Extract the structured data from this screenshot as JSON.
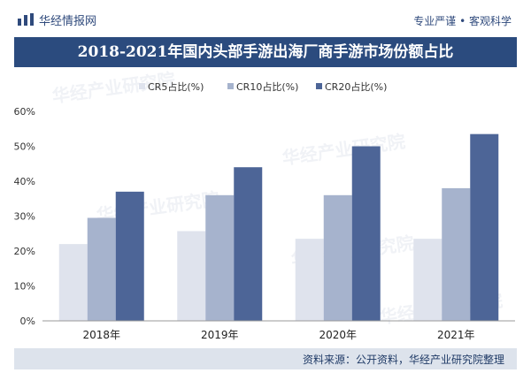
{
  "header": {
    "brand_name": "华经情报网",
    "slogan": "专业严谨 • 客观科学",
    "brand_icon": "bar-chart-logo-icon"
  },
  "footer": {
    "source": "资料来源：公开资料，华经产业研究院整理"
  },
  "colors": {
    "title_bar": "#2b4b7e",
    "footer_bar": "#dde3ec",
    "series": [
      "#dfe3ed",
      "#a6b3cd",
      "#4d6597"
    ]
  },
  "chart_data": {
    "type": "bar",
    "title": "2018-2021年国内头部手游出海厂商手游市场份额占比",
    "categories": [
      "2018年",
      "2019年",
      "2020年",
      "2021年"
    ],
    "series": [
      {
        "name": "CR5占比(%)",
        "values": [
          22,
          25.7,
          23.5,
          23.5
        ]
      },
      {
        "name": "CR10占比(%)",
        "values": [
          29.5,
          36,
          36,
          38
        ]
      },
      {
        "name": "CR20占比(%)",
        "values": [
          37,
          44,
          50,
          53.5
        ]
      }
    ],
    "ylim": [
      0,
      60
    ],
    "yticks": [
      "0%",
      "10%",
      "20%",
      "30%",
      "40%",
      "50%",
      "60%"
    ],
    "grid": false,
    "legend": "top",
    "watermark": "华经产业研究院"
  }
}
